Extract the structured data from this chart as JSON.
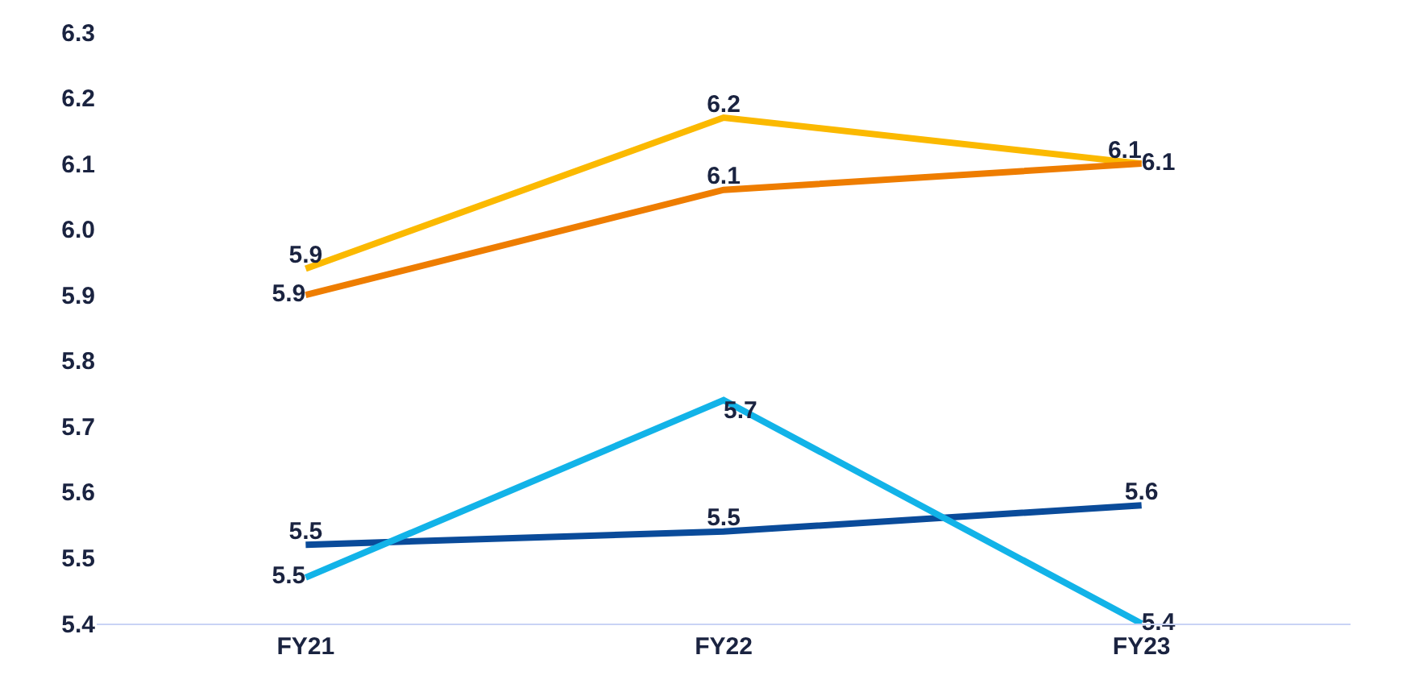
{
  "chart_data": {
    "type": "line",
    "categories": [
      "FY21",
      "FY22",
      "FY23"
    ],
    "series": [
      {
        "color": "#fbb900",
        "values": [
          5.94,
          6.17,
          6.1
        ],
        "value_labels": [
          "5.9",
          "6.2",
          "6.1"
        ]
      },
      {
        "color": "#ee7d00",
        "values": [
          5.9,
          6.06,
          6.1
        ],
        "value_labels": [
          "5.9",
          "6.1",
          "6.1"
        ]
      },
      {
        "color": "#0a4b9a",
        "values": [
          5.52,
          5.54,
          5.58
        ],
        "value_labels": [
          "5.5",
          "5.5",
          "5.6"
        ]
      },
      {
        "color": "#12b3e8",
        "values": [
          5.47,
          5.74,
          5.4
        ],
        "value_labels": [
          "5.5",
          "5.7",
          "5.4"
        ]
      }
    ],
    "ylim": [
      5.4,
      6.3
    ],
    "yticks": [
      5.4,
      5.5,
      5.6,
      5.7,
      5.8,
      5.9,
      {
        "value": 6,
        "label": "6.0"
      },
      6.1,
      6.2,
      6.3
    ],
    "marker": "none",
    "line_style": "solid"
  }
}
